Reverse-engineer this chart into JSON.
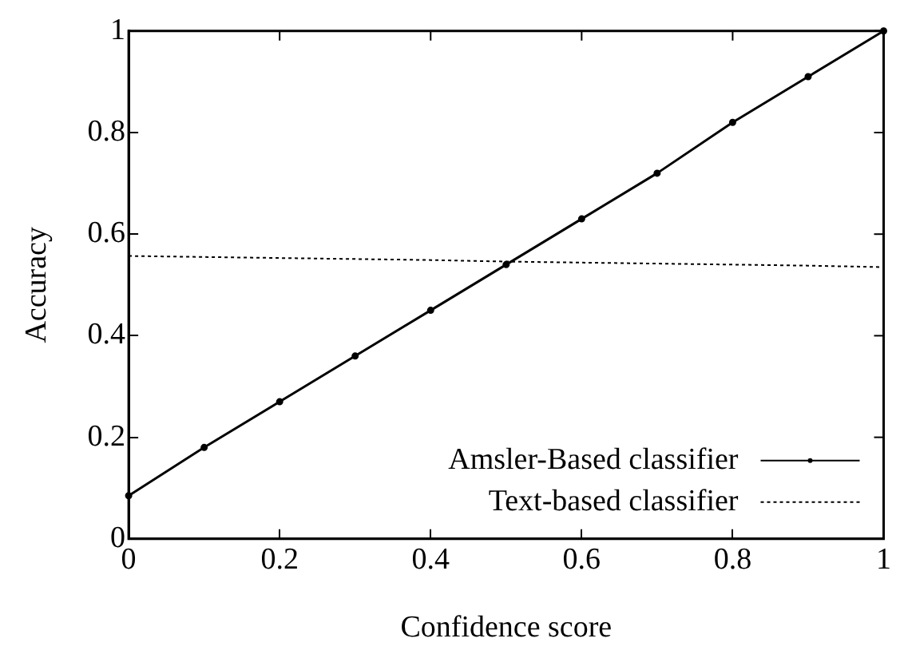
{
  "chart_data": {
    "type": "line",
    "xlabel": "Confidence score",
    "ylabel": "Accuracy",
    "x": [
      0,
      0.1,
      0.2,
      0.3,
      0.4,
      0.5,
      0.6,
      0.7,
      0.8,
      0.9,
      1
    ],
    "series": [
      {
        "name": "Amsler-Based classifier",
        "color": "#000000",
        "marker": "circle",
        "line_style": "solid",
        "values": [
          0.085,
          0.18,
          0.27,
          0.36,
          0.45,
          0.54,
          0.63,
          0.72,
          0.82,
          0.91,
          1
        ]
      },
      {
        "name": "Text-based classifier",
        "color": "#000000",
        "marker": "none",
        "line_style": "dotted",
        "values": [
          0.557,
          0.555,
          0.553,
          0.551,
          0.549,
          0.546,
          0.544,
          0.542,
          0.54,
          0.538,
          0.535
        ]
      }
    ],
    "xlim": [
      0,
      1
    ],
    "xticks": [
      0,
      0.2,
      0.4,
      0.6,
      0.8,
      1
    ],
    "ylim": [
      0,
      1
    ],
    "yticks": [
      0,
      0.2,
      0.4,
      0.6,
      0.8,
      1
    ],
    "grid": false,
    "legend": "bottom right"
  }
}
